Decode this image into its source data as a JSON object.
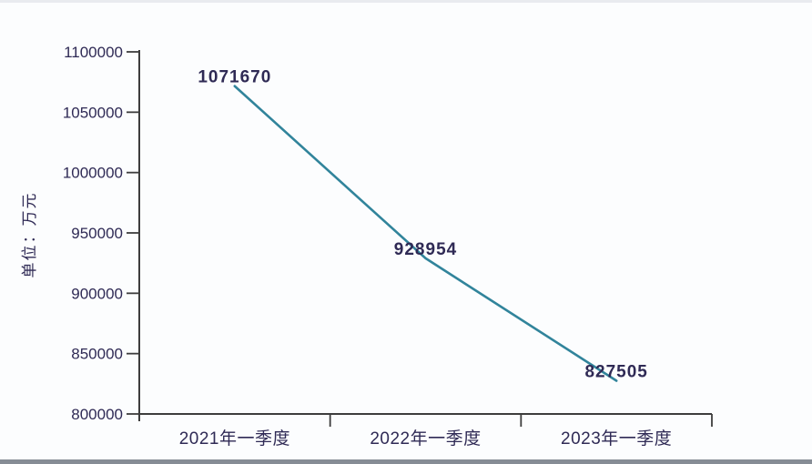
{
  "page": {
    "background": "#fcfdfe",
    "top_strip_color": "#e9ebef",
    "bottom_strip_color": "#868c95"
  },
  "chart_data": {
    "type": "line",
    "title": "",
    "xlabel": "",
    "ylabel": "单位：万元",
    "categories": [
      "2021年一季度",
      "2022年一季度",
      "2023年一季度"
    ],
    "values": [
      1071670,
      928954,
      827505
    ],
    "data_labels": [
      "1071670",
      "928954",
      "827505"
    ],
    "ylim": [
      800000,
      1100000
    ],
    "ytick_step": 50000,
    "ytick_labels": [
      "800000",
      "850000",
      "900000",
      "950000",
      "1000000",
      "1050000",
      "1100000"
    ],
    "grid": false,
    "legend": "none",
    "line_color": "#31849b",
    "text_color": "#2f2a55",
    "axis_color": "#3d3d3d"
  }
}
